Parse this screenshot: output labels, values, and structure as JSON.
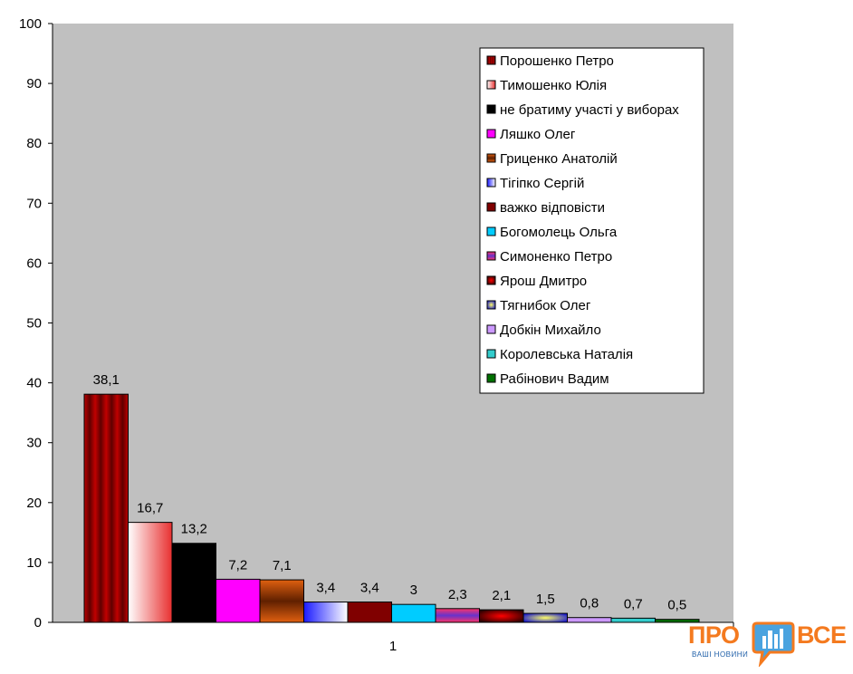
{
  "chart_data": {
    "type": "bar",
    "categories": [
      "1"
    ],
    "ylim": [
      0,
      100
    ],
    "yticks": [
      0,
      10,
      20,
      30,
      40,
      50,
      60,
      70,
      80,
      90,
      100
    ],
    "ytick_labels": [
      "0",
      "10",
      "20",
      "30",
      "40",
      "50",
      "60",
      "70",
      "80",
      "90",
      "100"
    ],
    "plot_background": "#c0c0c0",
    "grid": false,
    "legend_position": "top-right",
    "series": [
      {
        "name": "Порошенко Петро",
        "values": [
          38.1
        ],
        "label": "38,1",
        "color": "#c00000",
        "color2": "#600000",
        "pattern": "stripes"
      },
      {
        "name": "Тимошенко Юлія",
        "values": [
          16.7
        ],
        "label": "16,7",
        "color": "#ffffff",
        "color2": "#e83030",
        "pattern": "gradient-h"
      },
      {
        "name": "не братиму участі у виборах",
        "values": [
          13.2
        ],
        "label": "13,2",
        "color": "#000000",
        "color2": "#000000",
        "pattern": "solid"
      },
      {
        "name": "Ляшко Олег",
        "values": [
          7.2
        ],
        "label": "7,2",
        "color": "#ff00ff",
        "color2": "#ff00ff",
        "pattern": "solid"
      },
      {
        "name": "Гриценко Анатолій",
        "values": [
          7.1
        ],
        "label": "7,1",
        "color": "#e06010",
        "color2": "#602000",
        "pattern": "gradient-v"
      },
      {
        "name": "Тігіпко Сергій",
        "values": [
          3.4
        ],
        "label": "3,4",
        "color": "#1a1aff",
        "color2": "#ffffff",
        "pattern": "gradient-h"
      },
      {
        "name": "важко відповісти",
        "values": [
          3.4
        ],
        "label": "3,4",
        "color": "#800000",
        "color2": "#800000",
        "pattern": "solid"
      },
      {
        "name": "Богомолець Ольга",
        "values": [
          3
        ],
        "label": "3",
        "color": "#00ccff",
        "color2": "#00ccff",
        "pattern": "solid"
      },
      {
        "name": "Симоненко Петро",
        "values": [
          2.3
        ],
        "label": "2,3",
        "color": "#ff3366",
        "color2": "#6633cc",
        "pattern": "gradient-v"
      },
      {
        "name": "Ярош Дмитро",
        "values": [
          2.1
        ],
        "label": "2,1",
        "color": "#ff0000",
        "color2": "#300000",
        "pattern": "radial"
      },
      {
        "name": "Тягнибок Олег",
        "values": [
          1.5
        ],
        "label": "1,5",
        "color": "#ffff66",
        "color2": "#1a1acc",
        "pattern": "radial"
      },
      {
        "name": "Добкін Михайло",
        "values": [
          0.8
        ],
        "label": "0,8",
        "color": "#cc99ff",
        "color2": "#cc99ff",
        "pattern": "solid"
      },
      {
        "name": "Королевська Наталія",
        "values": [
          0.7
        ],
        "label": "0,7",
        "color": "#33cccc",
        "color2": "#33cccc",
        "pattern": "solid"
      },
      {
        "name": "Рабінович Вадим",
        "values": [
          0.5
        ],
        "label": "0,5",
        "color": "#007000",
        "color2": "#007000",
        "pattern": "solid"
      }
    ]
  },
  "watermark": {
    "word_left": "ПРО",
    "word_right": "ВСЕ",
    "tagline": "ВАШІ НОВИНИ"
  }
}
